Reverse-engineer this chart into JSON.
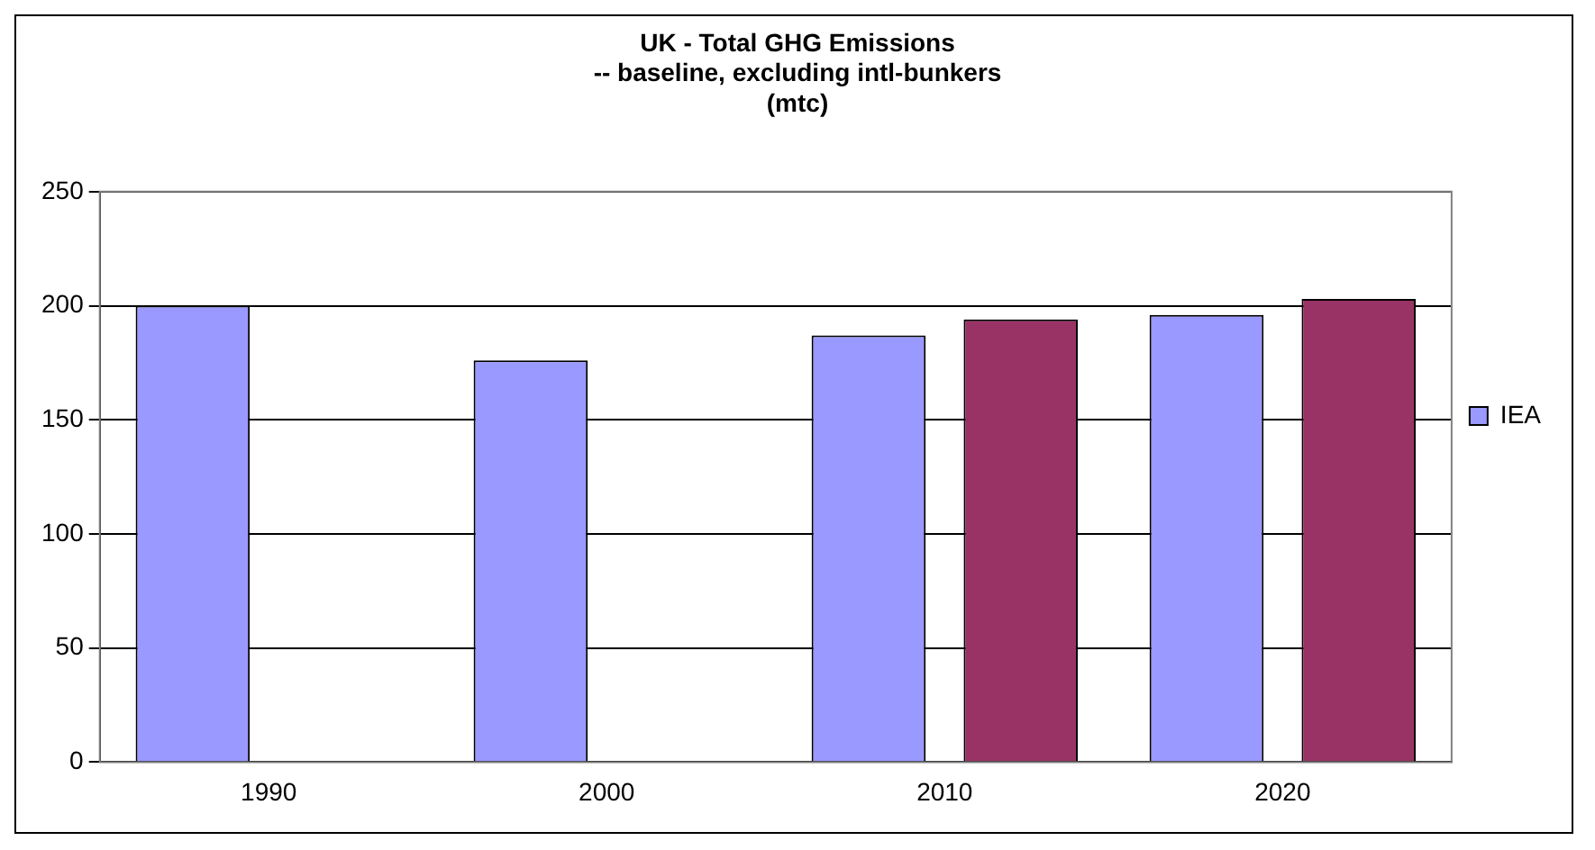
{
  "chart_data": {
    "type": "bar",
    "title": "UK - Total GHG Emissions\n-- baseline, excluding intl-bunkers\n(mtc)",
    "categories": [
      "1990",
      "2000",
      "2010",
      "2020"
    ],
    "series": [
      {
        "name": "IEA",
        "color": "#9999ff",
        "values": [
          200,
          176,
          187,
          196
        ]
      },
      {
        "color": "#993366",
        "values": [
          null,
          null,
          194,
          203
        ]
      }
    ],
    "ylim": [
      0,
      250
    ],
    "yticks": [
      0,
      50,
      100,
      150,
      200,
      250
    ],
    "grid": "y",
    "legend": "right"
  }
}
